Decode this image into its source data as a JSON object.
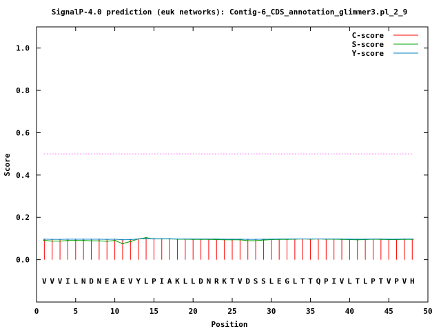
{
  "chart_data": {
    "type": "line",
    "title": "SignalP-4.0 prediction (euk networks): Contig-6_CDS_annotation_glimmer3.pl_2_9",
    "xlabel": "Position",
    "ylabel": "Score",
    "xlim": [
      0,
      50
    ],
    "ylim": [
      -0.2,
      1.1
    ],
    "xticks": [
      0,
      5,
      10,
      15,
      20,
      25,
      30,
      35,
      40,
      45,
      50
    ],
    "xtick_labels": [
      "0",
      "5",
      "10",
      "15",
      "20",
      "25",
      "30",
      "35",
      "40",
      "45",
      "50"
    ],
    "yticks": [
      0.0,
      0.2,
      0.4,
      0.6,
      0.8,
      1.0
    ],
    "ytick_labels": [
      "0.0",
      "0.2",
      "0.4",
      "0.6",
      "0.8",
      "1.0"
    ],
    "threshold": 0.5,
    "threshold_color": "#ff00ff",
    "legend_position": "top-right",
    "sequence": [
      "V",
      "V",
      "V",
      "I",
      "L",
      "N",
      "D",
      "N",
      "E",
      "A",
      "E",
      "V",
      "Y",
      "L",
      "P",
      "I",
      "A",
      "K",
      "L",
      "L",
      "D",
      "N",
      "R",
      "K",
      "T",
      "V",
      "D",
      "S",
      "S",
      "L",
      "E",
      "G",
      "L",
      "T",
      "T",
      "Q",
      "P",
      "I",
      "V",
      "L",
      "T",
      "L",
      "P",
      "T",
      "V",
      "P",
      "V",
      "H"
    ],
    "x": [
      1,
      2,
      3,
      4,
      5,
      6,
      7,
      8,
      9,
      10,
      11,
      12,
      13,
      14,
      15,
      16,
      17,
      18,
      19,
      20,
      21,
      22,
      23,
      24,
      25,
      26,
      27,
      28,
      29,
      30,
      31,
      32,
      33,
      34,
      35,
      36,
      37,
      38,
      39,
      40,
      41,
      42,
      43,
      44,
      45,
      46,
      47,
      48
    ],
    "series": [
      {
        "name": "C-score",
        "style": "impulses",
        "color": "#ff0000",
        "values": [
          0.098,
          0.098,
          0.098,
          0.098,
          0.098,
          0.098,
          0.098,
          0.098,
          0.098,
          0.098,
          0.098,
          0.098,
          0.098,
          0.098,
          0.098,
          0.098,
          0.098,
          0.098,
          0.098,
          0.098,
          0.098,
          0.098,
          0.098,
          0.098,
          0.098,
          0.098,
          0.098,
          0.098,
          0.098,
          0.098,
          0.098,
          0.098,
          0.098,
          0.098,
          0.098,
          0.098,
          0.098,
          0.098,
          0.098,
          0.098,
          0.098,
          0.098,
          0.098,
          0.098,
          0.098,
          0.098,
          0.098,
          0.098
        ]
      },
      {
        "name": "S-score",
        "style": "line",
        "color": "#00a000",
        "values": [
          0.092,
          0.088,
          0.088,
          0.091,
          0.091,
          0.091,
          0.089,
          0.089,
          0.087,
          0.091,
          0.076,
          0.086,
          0.098,
          0.104,
          0.098,
          0.098,
          0.098,
          0.097,
          0.097,
          0.096,
          0.096,
          0.096,
          0.095,
          0.094,
          0.094,
          0.094,
          0.09,
          0.09,
          0.093,
          0.095,
          0.096,
          0.096,
          0.097,
          0.098,
          0.097,
          0.098,
          0.097,
          0.097,
          0.096,
          0.095,
          0.094,
          0.095,
          0.097,
          0.096,
          0.095,
          0.095,
          0.096,
          0.096
        ]
      },
      {
        "name": "Y-score",
        "style": "line",
        "color": "#0080c0",
        "values": [
          0.097,
          0.096,
          0.096,
          0.097,
          0.097,
          0.097,
          0.097,
          0.097,
          0.096,
          0.097,
          0.094,
          0.095,
          0.098,
          0.1,
          0.099,
          0.099,
          0.099,
          0.098,
          0.098,
          0.098,
          0.098,
          0.098,
          0.098,
          0.097,
          0.097,
          0.097,
          0.096,
          0.096,
          0.097,
          0.097,
          0.098,
          0.098,
          0.098,
          0.098,
          0.098,
          0.098,
          0.098,
          0.098,
          0.098,
          0.097,
          0.097,
          0.097,
          0.098,
          0.098,
          0.097,
          0.097,
          0.098,
          0.098
        ]
      }
    ]
  }
}
